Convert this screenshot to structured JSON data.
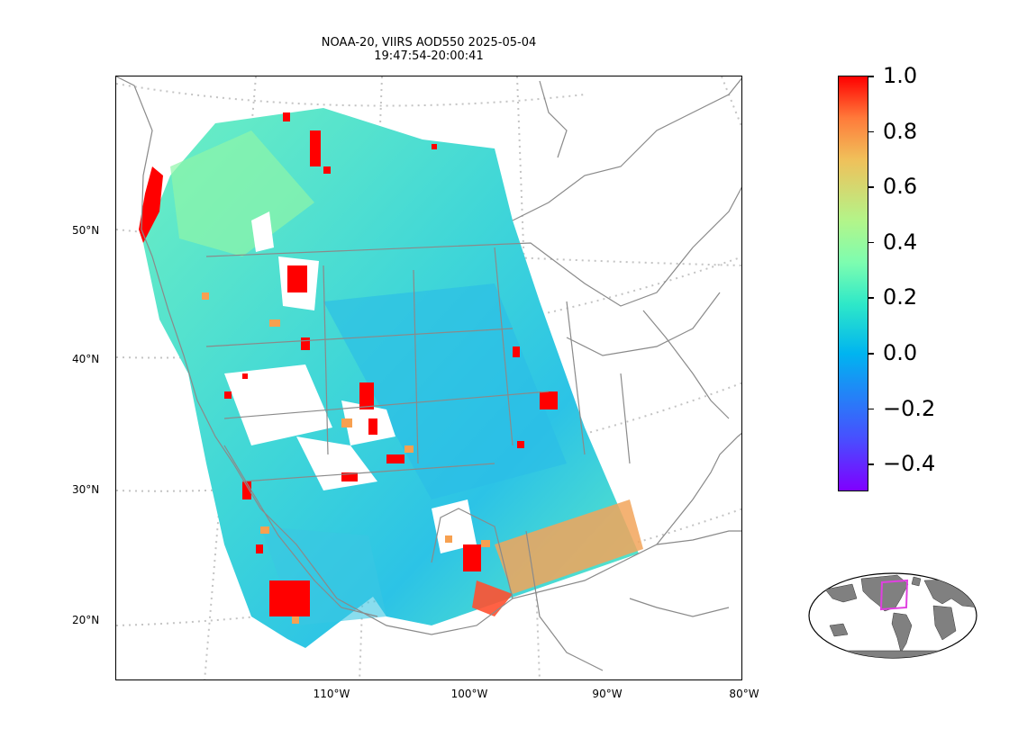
{
  "title": {
    "line1": "NOAA-20, VIIRS AOD550 2025-05-04",
    "line2": "19:47:54-20:00:41"
  },
  "axes": {
    "lat_labels": [
      "50°N",
      "40°N",
      "30°N",
      "20°N"
    ],
    "lon_labels": [
      "110°W",
      "100°W",
      "90°W",
      "80°W"
    ]
  },
  "colorbar": {
    "labels": [
      "1.0",
      "0.8",
      "0.6",
      "0.4",
      "0.2",
      "0.0",
      "−0.2",
      "−0.4"
    ],
    "min": -0.5,
    "max": 1.0,
    "colormap": "rainbow"
  },
  "colors": {
    "background_swath": "#5fe8c6",
    "low_aod": "#2bc0e6",
    "high_aod": "#ff0000",
    "coastline": "#808080",
    "gridline": "#c0c0c0",
    "inset_box": "#e040e0",
    "inset_land": "#808080"
  }
}
